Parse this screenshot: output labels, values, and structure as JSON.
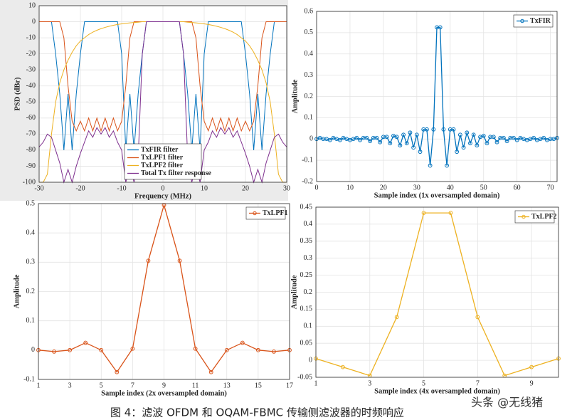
{
  "chart_data": [
    {
      "type": "line",
      "xlabel": "Frequency (MHz)",
      "ylabel": "PSD (dBr)",
      "x": [
        -30,
        -29,
        -28,
        -27,
        -26,
        -25,
        -24,
        -23,
        -22,
        -21,
        -20,
        -19,
        -18,
        -17,
        -16,
        -15,
        -14,
        -13,
        -12,
        -11,
        -10,
        -9,
        -8,
        -7,
        -6,
        -5,
        -4,
        -3,
        -2,
        -1,
        0,
        1,
        2,
        3,
        4,
        5,
        6,
        7,
        8,
        9,
        10,
        11,
        12,
        13,
        14,
        15,
        16,
        17,
        18,
        19,
        20,
        21,
        22,
        23,
        24,
        25,
        26,
        27,
        28,
        29,
        30
      ],
      "series": [
        {
          "name": "TxFIR filter",
          "color": "#0072bd",
          "values": [
            0,
            0,
            0,
            0,
            -20,
            -45,
            -80,
            -45,
            -80,
            -45,
            -20,
            0,
            0,
            0,
            0,
            0,
            0,
            0,
            0,
            0,
            -20,
            -80,
            -45,
            -80,
            -45,
            -20,
            0,
            0,
            0,
            0,
            0,
            0,
            0,
            0,
            0,
            -20,
            -45,
            -80,
            -45,
            -80,
            -20,
            0,
            0,
            0,
            0,
            0,
            0,
            0,
            0,
            0,
            -20,
            -45,
            -80,
            -45,
            -80,
            -45,
            -20,
            0,
            0,
            0,
            0
          ]
        },
        {
          "name": "TxLPF1 filter",
          "color": "#d95319",
          "values": [
            0,
            0,
            0,
            0,
            0,
            0,
            -10,
            -40,
            -62,
            -68,
            -62,
            -68,
            -60,
            -68,
            -60,
            -68,
            -60,
            -68,
            -60,
            -68,
            -62,
            -40,
            -10,
            0,
            0,
            0,
            0,
            0,
            0,
            0,
            0,
            0,
            0,
            0,
            0,
            0,
            0,
            0,
            -10,
            -40,
            -62,
            -68,
            -60,
            -68,
            -60,
            -68,
            -60,
            -68,
            -60,
            -68,
            -62,
            -68,
            -62,
            -40,
            -10,
            0,
            0,
            0,
            0,
            0,
            0
          ]
        },
        {
          "name": "TxLPF2 filter",
          "color": "#edb120",
          "values": [
            -100,
            -100,
            -95,
            -70,
            -50,
            -38,
            -30,
            -24,
            -19,
            -15,
            -12,
            -10,
            -8,
            -6.5,
            -5.3,
            -4.3,
            -3.5,
            -2.8,
            -2.2,
            -1.7,
            -1.3,
            -1,
            -0.7,
            -0.5,
            -0.3,
            0,
            0,
            0,
            0,
            0,
            0,
            0,
            0,
            0,
            0,
            0,
            -0.3,
            -0.5,
            -0.7,
            -1,
            -1.3,
            -1.7,
            -2.2,
            -2.8,
            -3.5,
            -4.3,
            -5.3,
            -6.5,
            -8,
            -10,
            -12,
            -15,
            -19,
            -24,
            -30,
            -38,
            -50,
            -70,
            -95,
            -100,
            -100
          ]
        },
        {
          "name": "Total Tx filter response",
          "color": "#7e2f8e",
          "values": [
            -78,
            -75,
            -70,
            -72,
            -80,
            -88,
            -100,
            -92,
            -100,
            -90,
            -82,
            -75,
            -68,
            -72,
            -66,
            -70,
            -66,
            -72,
            -68,
            -75,
            -80,
            -100,
            -90,
            -100,
            -85,
            -20,
            0,
            0,
            0,
            0,
            0,
            0,
            0,
            0,
            0,
            -20,
            -85,
            -100,
            -90,
            -100,
            -80,
            -75,
            -68,
            -72,
            -66,
            -70,
            -66,
            -72,
            -68,
            -75,
            -82,
            -90,
            -100,
            -92,
            -100,
            -88,
            -80,
            -72,
            -70,
            -75,
            -78
          ]
        }
      ],
      "xlim": [
        -30,
        30
      ],
      "xticks": [
        -30,
        -20,
        -10,
        0,
        10,
        20,
        30
      ],
      "ylim": [
        -100,
        10
      ],
      "yticks": [
        10,
        0,
        -10,
        -20,
        -30,
        -40,
        -50,
        -60,
        -70,
        -80,
        -90,
        -100
      ],
      "grid": true,
      "legend": "lower center",
      "marker": "none"
    },
    {
      "type": "line",
      "xlabel": "Sample index (1x oversampled domain)",
      "ylabel": "Amplitude",
      "x": [
        0,
        1,
        2,
        3,
        4,
        5,
        6,
        7,
        8,
        9,
        10,
        11,
        12,
        13,
        14,
        15,
        16,
        17,
        18,
        19,
        20,
        21,
        22,
        23,
        24,
        25,
        26,
        27,
        28,
        29,
        30,
        31,
        32,
        33,
        34,
        35,
        36,
        37,
        38,
        39,
        40,
        41,
        42,
        43,
        44,
        45,
        46,
        47,
        48,
        49,
        50,
        51,
        52,
        53,
        54,
        55,
        56,
        57,
        58,
        59,
        60,
        61,
        62,
        63,
        64,
        65,
        66,
        67,
        68,
        69,
        70,
        71,
        72
      ],
      "series": [
        {
          "name": "TxFIR",
          "color": "#0072bd",
          "values": [
            0,
            0.005,
            0,
            0,
            -0.005,
            0.005,
            0,
            -0.005,
            0.005,
            0,
            -0.005,
            0,
            0.005,
            -0.005,
            0.005,
            0.005,
            -0.01,
            0.005,
            0.005,
            -0.015,
            0.01,
            0.01,
            -0.02,
            0.015,
            0.01,
            -0.03,
            0.02,
            -0.02,
            0.03,
            -0.04,
            0.02,
            -0.06,
            0.045,
            0.045,
            -0.125,
            0.045,
            0.525,
            0.525,
            0.045,
            -0.125,
            0.045,
            0.045,
            -0.06,
            0.02,
            -0.04,
            0.03,
            -0.02,
            0.02,
            -0.03,
            0.01,
            0.015,
            -0.02,
            0.01,
            0.01,
            -0.015,
            0.005,
            0.005,
            -0.01,
            0.005,
            0.005,
            -0.005,
            0.005,
            0,
            -0.005,
            0,
            0.005,
            -0.005,
            0,
            0.005,
            -0.005,
            0,
            0,
            0.005
          ]
        }
      ],
      "xlim": [
        0,
        72
      ],
      "xticks": [
        0,
        10,
        20,
        30,
        40,
        50,
        60,
        70
      ],
      "ylim": [
        -0.2,
        0.6
      ],
      "yticks": [
        -0.2,
        -0.1,
        0,
        0.1,
        0.2,
        0.3,
        0.4,
        0.5,
        0.6
      ],
      "grid": true,
      "legend": "upper right",
      "marker": "o"
    },
    {
      "type": "line",
      "xlabel": "Sample index (2x oversampled domain)",
      "ylabel": "Amplitude",
      "x": [
        1,
        2,
        3,
        4,
        5,
        6,
        7,
        8,
        9,
        10,
        11,
        12,
        13,
        14,
        15,
        16,
        17
      ],
      "series": [
        {
          "name": "TxLPF1",
          "color": "#d95319",
          "values": [
            0,
            -0.005,
            0,
            0.025,
            0,
            -0.075,
            0.005,
            0.305,
            0.495,
            0.305,
            0.005,
            -0.075,
            0,
            0.025,
            0,
            -0.005,
            0
          ]
        }
      ],
      "xlim": [
        1,
        17
      ],
      "xticks": [
        1,
        3,
        5,
        7,
        9,
        11,
        13,
        15,
        17
      ],
      "ylim": [
        -0.1,
        0.5
      ],
      "yticks": [
        -0.1,
        0,
        0.1,
        0.2,
        0.3,
        0.4,
        0.5
      ],
      "grid": true,
      "legend": "upper right",
      "marker": "o"
    },
    {
      "type": "line",
      "xlabel": "Sample index (4x oversampled domain)",
      "ylabel": "Amplitude",
      "x": [
        1,
        2,
        3,
        4,
        5,
        6,
        7,
        8,
        9,
        10
      ],
      "series": [
        {
          "name": "TxLPF2",
          "color": "#edb120",
          "values": [
            0.005,
            -0.02,
            -0.045,
            0.127,
            0.433,
            0.433,
            0.127,
            -0.045,
            -0.02,
            0.005
          ]
        }
      ],
      "xlim": [
        1,
        10
      ],
      "xticks": [
        1,
        3,
        5,
        7,
        9
      ],
      "ylim": [
        -0.05,
        0.45
      ],
      "yticks": [
        -0.05,
        0,
        0.05,
        0.1,
        0.15,
        0.2,
        0.25,
        0.3,
        0.35,
        0.4,
        0.45
      ],
      "grid": true,
      "legend": "upper right",
      "marker": "o"
    }
  ],
  "caption": "图 4：滤波 OFDM 和 OQAM-FBMC 传输侧滤波器的时频响应",
  "watermark": "头条 @无线猪"
}
